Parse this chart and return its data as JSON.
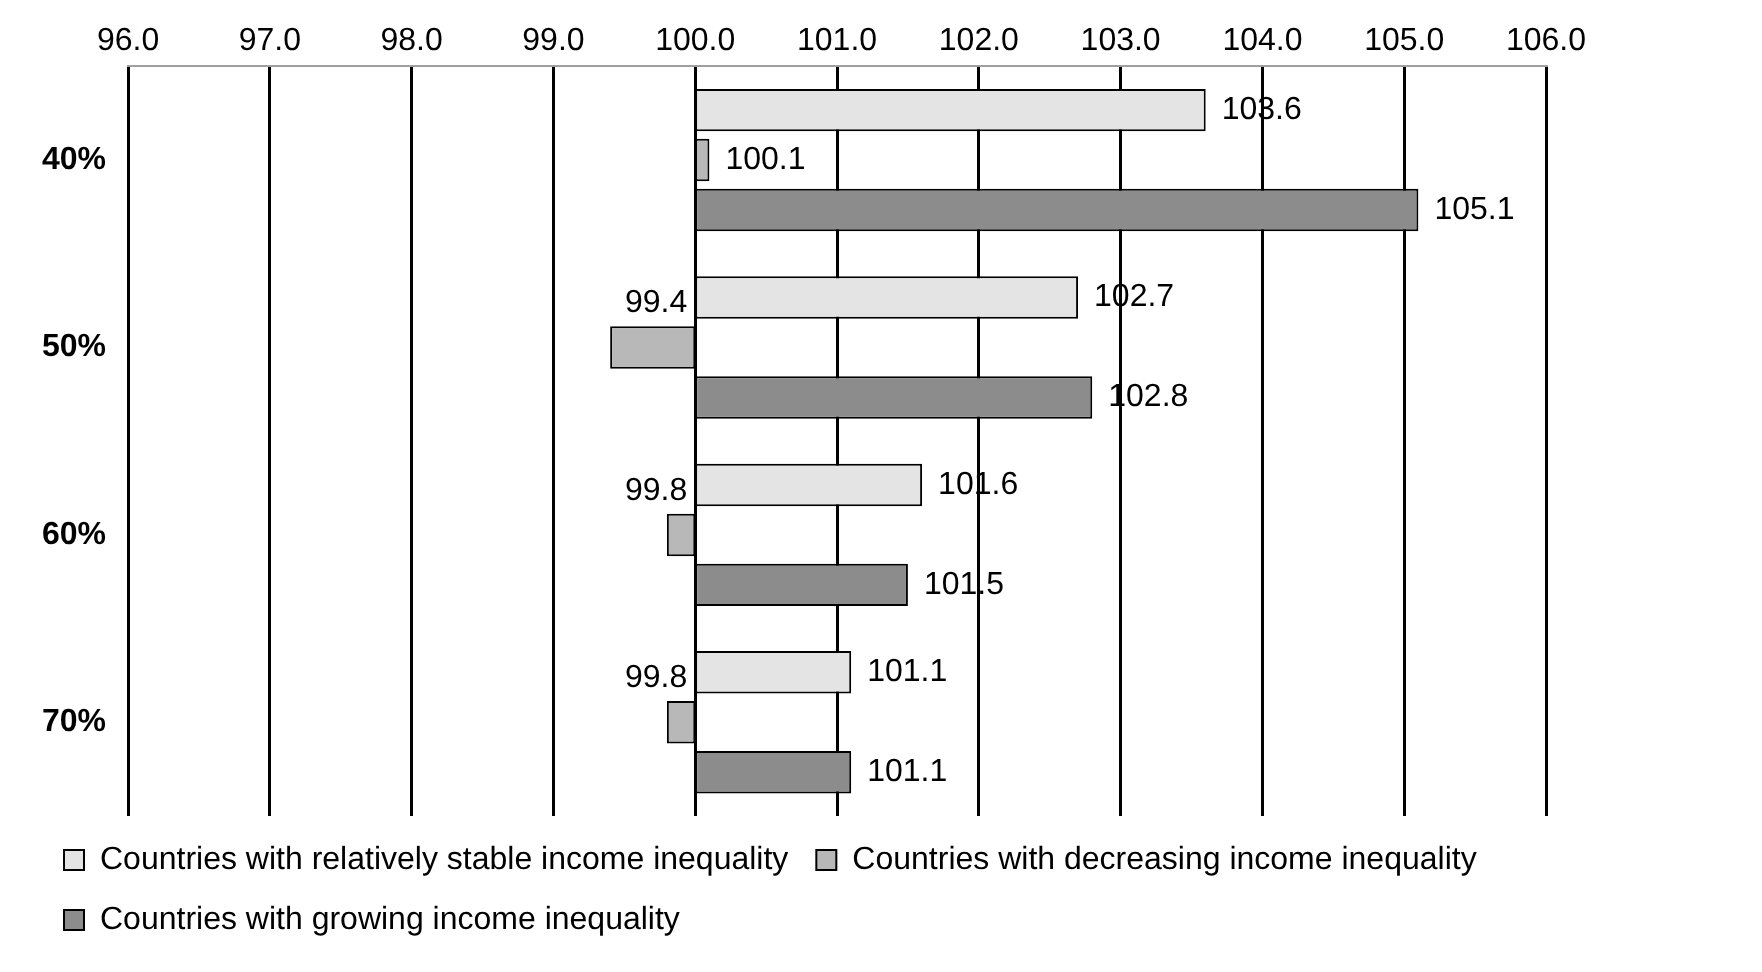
{
  "chart_data": {
    "type": "bar",
    "orientation": "horizontal",
    "categories": [
      "40%",
      "50%",
      "60%",
      "70%"
    ],
    "series": [
      {
        "name": "Countries with relatively stable income inequality",
        "color": "#e4e4e4",
        "base": [
          100,
          100,
          100,
          100
        ],
        "values": [
          3.6,
          2.7,
          1.6,
          1.1
        ],
        "value_labels": [
          "103.6",
          "102.7",
          "101.6",
          "101.1"
        ]
      },
      {
        "name": "Countries with decreasing income inequality",
        "color": "#b8b8b8",
        "base": [
          100,
          100,
          100,
          100
        ],
        "values": [
          0.1,
          -0.6,
          -0.2,
          -0.2
        ],
        "value_labels": [
          "100.1",
          "99.4",
          "99.8",
          "99.8"
        ]
      },
      {
        "name": "Countries with growing income inequality",
        "color": "#8c8c8c",
        "base": [
          100,
          100,
          100,
          100
        ],
        "values": [
          5.1,
          2.8,
          1.5,
          1.1
        ],
        "value_labels": [
          "105.1",
          "102.8",
          "101.5",
          "101.1"
        ]
      }
    ],
    "xlim": [
      96,
      106
    ],
    "xticks": [
      {
        "value": 96,
        "label": "96.0"
      },
      {
        "value": 97,
        "label": "97.0"
      },
      {
        "value": 98,
        "label": "98.0"
      },
      {
        "value": 99,
        "label": "99.0"
      },
      {
        "value": 100,
        "label": "100.0"
      },
      {
        "value": 101,
        "label": "101.0"
      },
      {
        "value": 102,
        "label": "102.0"
      },
      {
        "value": 103,
        "label": "103.0"
      },
      {
        "value": 104,
        "label": "104.0"
      },
      {
        "value": 105,
        "label": "105.0"
      },
      {
        "value": 106,
        "label": "106.0"
      }
    ],
    "grid": "x",
    "legend": "bottom"
  }
}
